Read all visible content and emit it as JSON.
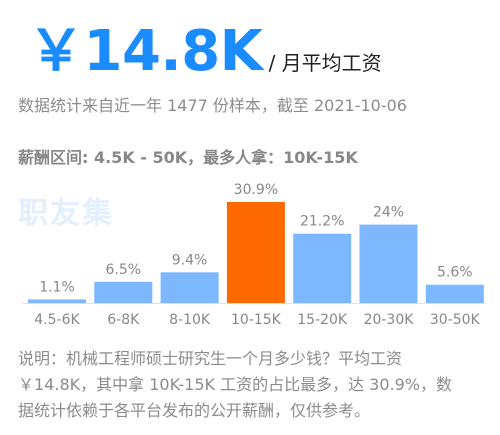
{
  "header": {
    "salary_value": "￥14.8K",
    "salary_unit": "/ 月平均工资"
  },
  "source_text": "数据统计来自近一年 1477 份样本，截至 2021-10-06",
  "range_text": "薪酬区间: 4.5K - 50K，最多人拿：10K-15K",
  "watermark": "职友集",
  "colors": {
    "accent": "#1a8cff",
    "bar": "#7db8ff",
    "bar_highlight": "#ff6a00",
    "baseline": "#e0e0e0"
  },
  "chart_data": {
    "type": "bar",
    "categories": [
      "4.5-6K",
      "6-8K",
      "8-10K",
      "10-15K",
      "15-20K",
      "20-30K",
      "30-50K"
    ],
    "values": [
      1.1,
      6.5,
      9.4,
      30.9,
      21.2,
      24,
      5.6
    ],
    "value_labels": [
      "1.1%",
      "6.5%",
      "9.4%",
      "30.9%",
      "21.2%",
      "24%",
      "5.6%"
    ],
    "highlight_index": 3,
    "ylim": [
      0,
      30.9
    ],
    "grid": false,
    "title": "",
    "xlabel": "",
    "ylabel": ""
  },
  "note": {
    "lines": [
      "说明：机械工程师硕士研究生一个月多少钱？平均工资",
      "￥14.8K，其中拿 10K-15K 工资的占比最多，达 30.9%，数",
      "据统计依赖于各平台发布的公开薪酬，仅供参考。"
    ]
  }
}
